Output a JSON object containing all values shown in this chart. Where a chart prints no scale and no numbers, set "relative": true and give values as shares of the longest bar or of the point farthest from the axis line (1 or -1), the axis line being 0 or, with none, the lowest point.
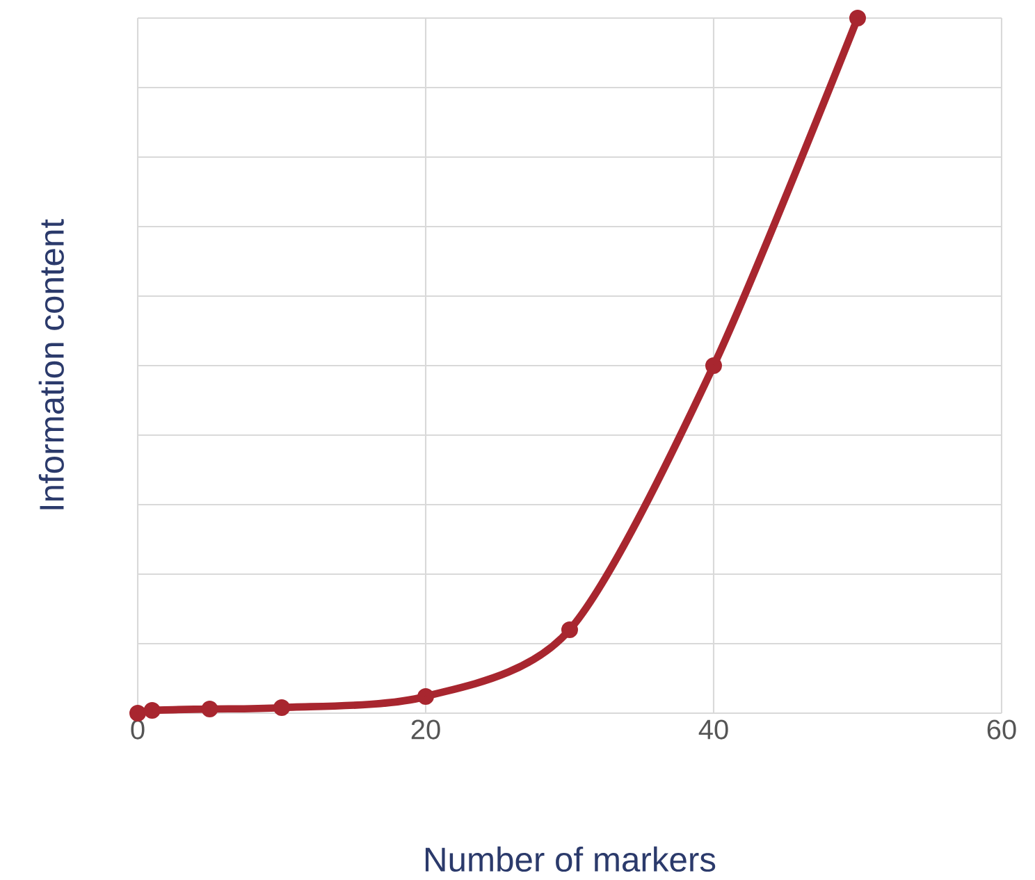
{
  "chart_data": {
    "type": "line",
    "xlabel": "Number of markers",
    "ylabel": "Information content",
    "relative": true,
    "x": [
      0,
      1,
      5,
      10,
      20,
      30,
      40,
      50
    ],
    "values": [
      0,
      0.004,
      0.006,
      0.008,
      0.024,
      0.12,
      0.5,
      1.0
    ],
    "color": "#a8262f",
    "marker": "circle",
    "line_style": "solid",
    "grid": true,
    "xlim": [
      0,
      60
    ],
    "xticks": [
      0,
      20,
      40,
      60
    ]
  }
}
